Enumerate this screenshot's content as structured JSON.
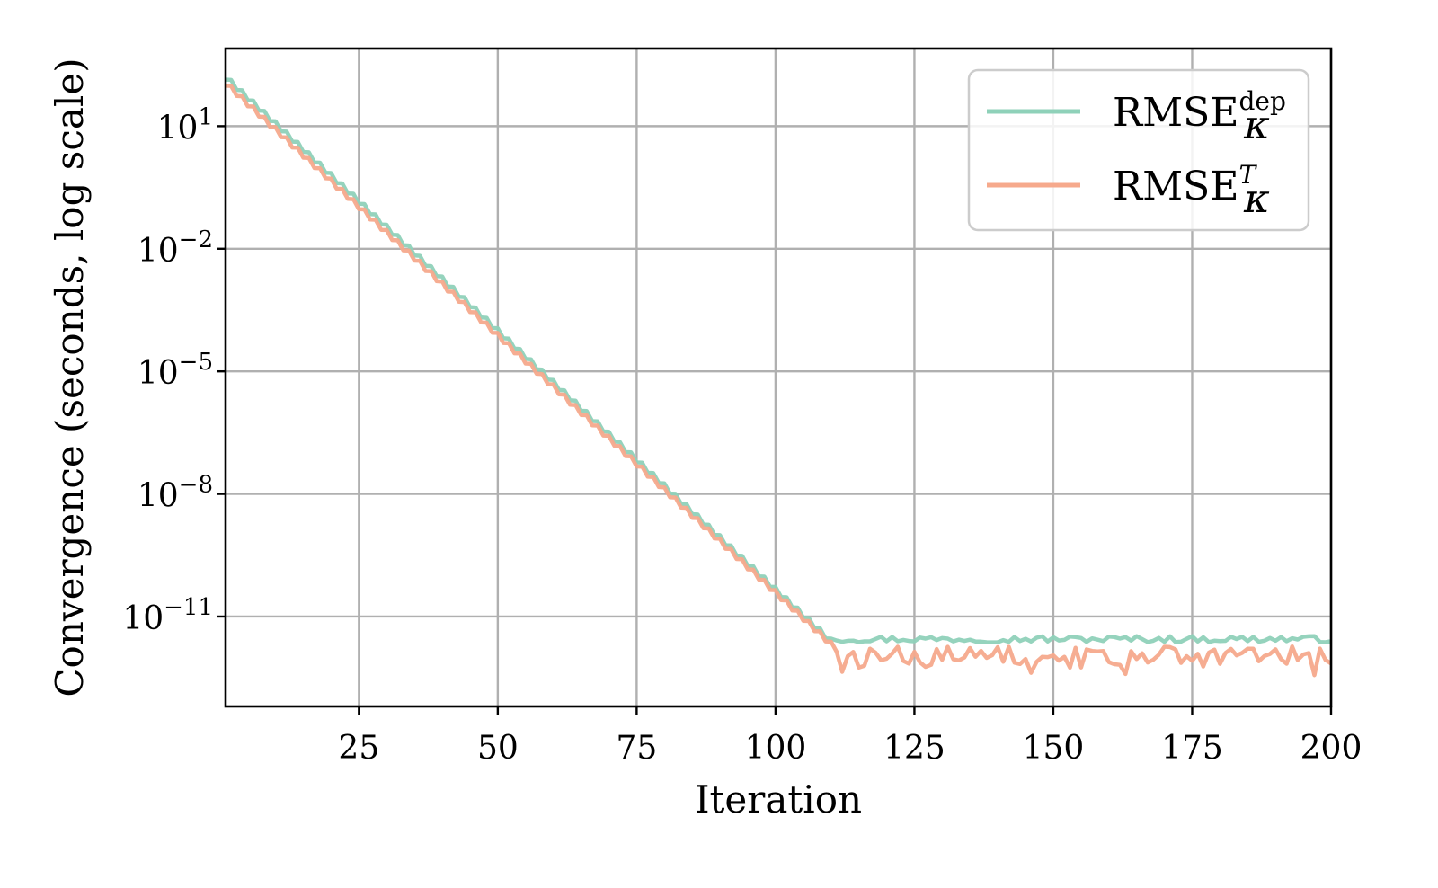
{
  "chart_data": {
    "type": "line",
    "xlabel": "Iteration",
    "ylabel": "Convergence (seconds, log scale)",
    "xlim": [
      1,
      200
    ],
    "ylim_log10": [
      -13.2,
      2.9
    ],
    "yscale": "log",
    "grid": true,
    "legend_position": "top-right",
    "x_ticks": [
      25,
      50,
      75,
      100,
      125,
      150,
      175,
      200
    ],
    "y_ticks": [
      {
        "exp": 1,
        "base": "10",
        "sup": "1"
      },
      {
        "exp": -2,
        "base": "10",
        "sup": "−2"
      },
      {
        "exp": -5,
        "base": "10",
        "sup": "−5"
      },
      {
        "exp": -8,
        "base": "10",
        "sup": "−8"
      },
      {
        "exp": -11,
        "base": "10",
        "sup": "−11"
      }
    ],
    "series": [
      {
        "name": "RMSE",
        "sub": "κ",
        "sup": "dep",
        "color": "#8fd1b9",
        "x_start": 1,
        "x_end": 200,
        "knee_x": 110,
        "log10_start": 2.2,
        "log10_knee": -11.6,
        "log10_floor": -11.55,
        "floor_jitter": 0.08
      },
      {
        "name": "RMSE",
        "sub": "κ",
        "sup": "T",
        "color": "#f6a98c",
        "x_start": 1,
        "x_end": 200,
        "knee_x": 111,
        "log10_start": 2.05,
        "log10_knee": -11.8,
        "log10_floor": -11.95,
        "floor_jitter": 0.22
      }
    ]
  }
}
